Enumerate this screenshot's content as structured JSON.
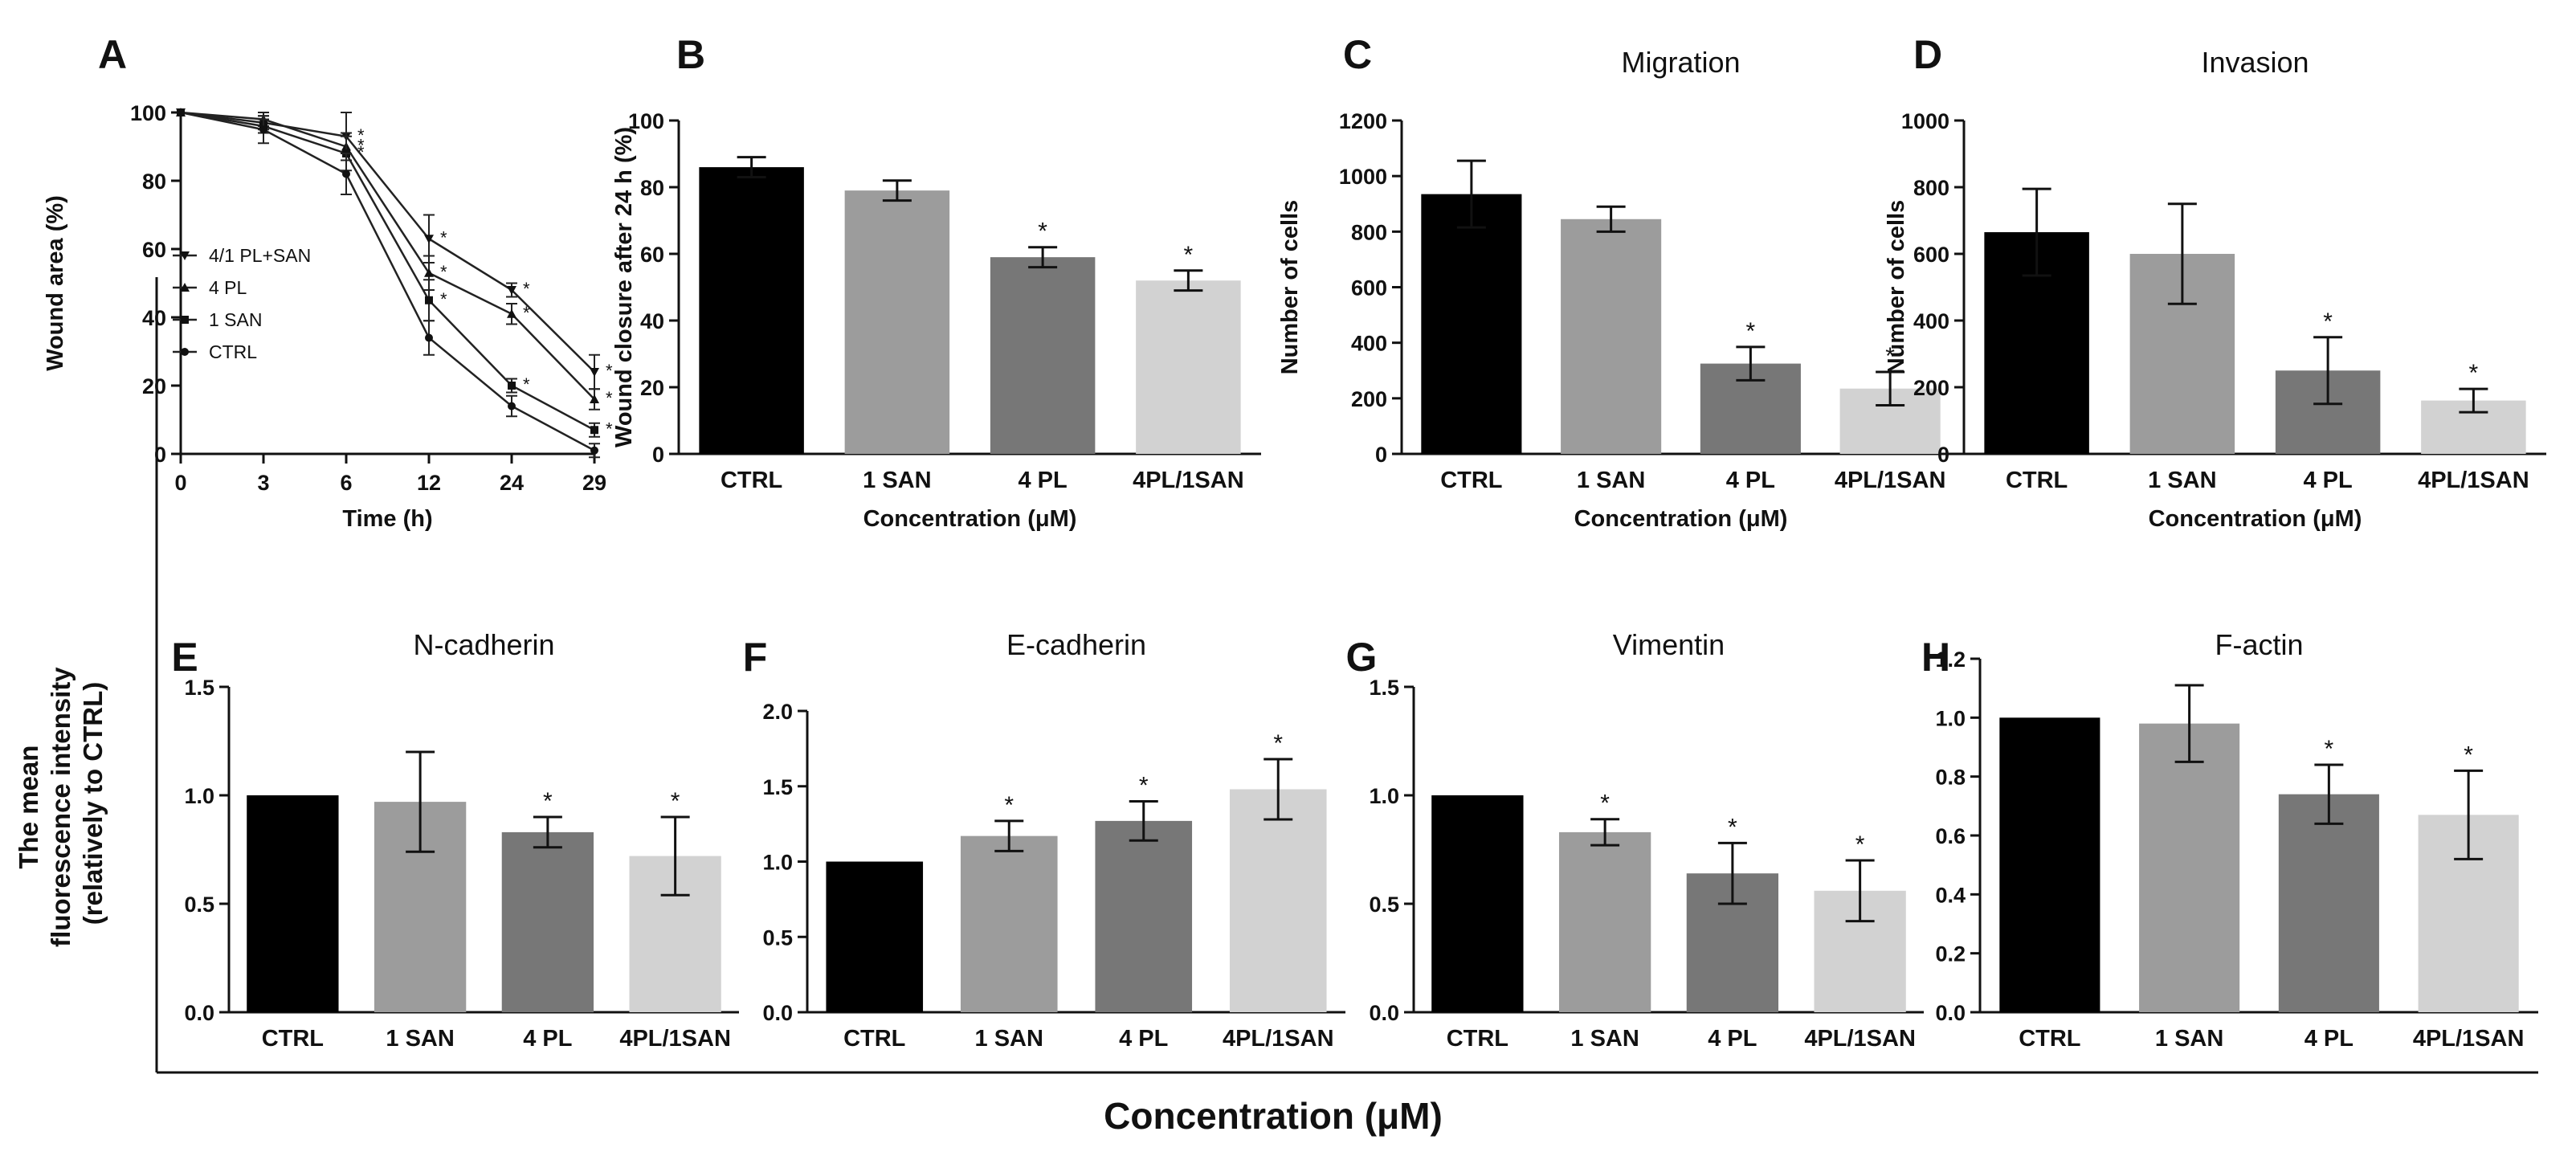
{
  "figure": {
    "shared_xlabel": "Concentration (μM)",
    "shared_ylabel_lines": [
      "The mean",
      "fluorescence intensity",
      "(relatively to CTRL)"
    ],
    "bar_colors": [
      "#000000",
      "#9c9c9c",
      "#777777",
      "#d2d2d2"
    ],
    "line_color": "#222222"
  },
  "chart_data": [
    {
      "panel": "A",
      "type": "line",
      "title": "",
      "xlabel": "Time (h)",
      "ylabel": "Wound area (%)",
      "categories": [
        "0",
        "3",
        "6",
        "12",
        "24",
        "29"
      ],
      "ylim": [
        0,
        100
      ],
      "yticks": [
        0,
        20,
        40,
        60,
        80,
        100
      ],
      "legend": [
        "4/1 PL+SAN",
        "4 PL",
        "1 SAN",
        "CTRL"
      ],
      "series": [
        {
          "name": "4/1 PL+SAN",
          "marker": "triangle-down",
          "values": [
            100,
            97,
            93,
            63,
            48,
            24
          ],
          "errors": [
            0,
            2,
            7,
            7,
            2,
            5
          ],
          "stars": [
            false,
            false,
            true,
            true,
            true,
            true
          ]
        },
        {
          "name": "4 PL",
          "marker": "triangle-up",
          "values": [
            100,
            98,
            90,
            53,
            41,
            16
          ],
          "errors": [
            0,
            2,
            4,
            5,
            3,
            3
          ],
          "stars": [
            false,
            false,
            true,
            true,
            true,
            true
          ]
        },
        {
          "name": "1 SAN",
          "marker": "square",
          "values": [
            100,
            96,
            88,
            45,
            20,
            7
          ],
          "errors": [
            0,
            2,
            5,
            6,
            2,
            2
          ],
          "stars": [
            false,
            false,
            true,
            true,
            true,
            true
          ]
        },
        {
          "name": "CTRL",
          "marker": "circle",
          "values": [
            100,
            95,
            82,
            34,
            14,
            1
          ],
          "errors": [
            0,
            4,
            6,
            5,
            3,
            2
          ],
          "stars": [
            false,
            false,
            false,
            false,
            false,
            false
          ]
        }
      ]
    },
    {
      "panel": "B",
      "type": "bar",
      "title": "",
      "xlabel": "Concentration (μM)",
      "ylabel": "Wound closure after 24 h (%)",
      "categories": [
        "CTRL",
        "1 SAN",
        "4 PL",
        "4PL/1SAN"
      ],
      "values": [
        86,
        79,
        59,
        52
      ],
      "errors": [
        3,
        3,
        3,
        3
      ],
      "stars": [
        false,
        false,
        true,
        true
      ],
      "ylim": [
        0,
        100
      ],
      "yticks": [
        0,
        20,
        40,
        60,
        80,
        100
      ]
    },
    {
      "panel": "C",
      "type": "bar",
      "title": "Migration",
      "xlabel": "Concentration (μM)",
      "ylabel": "Number of cells",
      "categories": [
        "CTRL",
        "1 SAN",
        "4 PL",
        "4PL/1SAN"
      ],
      "values": [
        935,
        845,
        325,
        235
      ],
      "errors": [
        120,
        45,
        60,
        60
      ],
      "stars": [
        false,
        false,
        true,
        true
      ],
      "ylim": [
        0,
        1200
      ],
      "yticks": [
        0,
        200,
        400,
        600,
        800,
        1000,
        1200
      ]
    },
    {
      "panel": "D",
      "type": "bar",
      "title": "Invasion",
      "xlabel": "Concentration (μM)",
      "ylabel": "Number of cells",
      "categories": [
        "CTRL",
        "1 SAN",
        "4 PL",
        "4PL/1SAN"
      ],
      "values": [
        665,
        600,
        250,
        160
      ],
      "errors": [
        130,
        150,
        100,
        35
      ],
      "stars": [
        false,
        false,
        true,
        true
      ],
      "ylim": [
        0,
        1000
      ],
      "yticks": [
        0,
        200,
        400,
        600,
        800,
        1000
      ]
    },
    {
      "panel": "E",
      "type": "bar",
      "title": "N-cadherin",
      "xlabel": "",
      "ylabel": "",
      "categories": [
        "CTRL",
        "1 SAN",
        "4 PL",
        "4PL/1SAN"
      ],
      "values": [
        1.0,
        0.97,
        0.83,
        0.72
      ],
      "errors": [
        0,
        0.23,
        0.07,
        0.18
      ],
      "stars": [
        false,
        false,
        true,
        true
      ],
      "ylim": [
        0,
        1.5
      ],
      "yticks": [
        "0.0",
        "0.5",
        "1.0",
        "1.5"
      ]
    },
    {
      "panel": "F",
      "type": "bar",
      "title": "E-cadherin",
      "xlabel": "",
      "ylabel": "",
      "categories": [
        "CTRL",
        "1 SAN",
        "4 PL",
        "4PL/1SAN"
      ],
      "values": [
        1.0,
        1.17,
        1.27,
        1.48
      ],
      "errors": [
        0,
        0.1,
        0.13,
        0.2
      ],
      "stars": [
        false,
        true,
        true,
        true
      ],
      "ylim": [
        0,
        2.0
      ],
      "yticks": [
        "0.0",
        "0.5",
        "1.0",
        "1.5",
        "2.0"
      ]
    },
    {
      "panel": "G",
      "type": "bar",
      "title": "Vimentin",
      "xlabel": "",
      "ylabel": "",
      "categories": [
        "CTRL",
        "1 SAN",
        "4 PL",
        "4PL/1SAN"
      ],
      "values": [
        1.0,
        0.83,
        0.64,
        0.56
      ],
      "errors": [
        0,
        0.06,
        0.14,
        0.14
      ],
      "stars": [
        false,
        true,
        true,
        true
      ],
      "ylim": [
        0,
        1.5
      ],
      "yticks": [
        "0.0",
        "0.5",
        "1.0",
        "1.5"
      ]
    },
    {
      "panel": "H",
      "type": "bar",
      "title": "F-actin",
      "xlabel": "",
      "ylabel": "",
      "categories": [
        "CTRL",
        "1 SAN",
        "4 PL",
        "4PL/1SAN"
      ],
      "values": [
        1.0,
        0.98,
        0.74,
        0.67
      ],
      "errors": [
        0,
        0.13,
        0.1,
        0.15
      ],
      "stars": [
        false,
        false,
        true,
        true
      ],
      "ylim": [
        0,
        1.2
      ],
      "yticks": [
        "0.0",
        "0.2",
        "0.4",
        "0.6",
        "0.8",
        "1.0",
        "1.2"
      ]
    }
  ]
}
